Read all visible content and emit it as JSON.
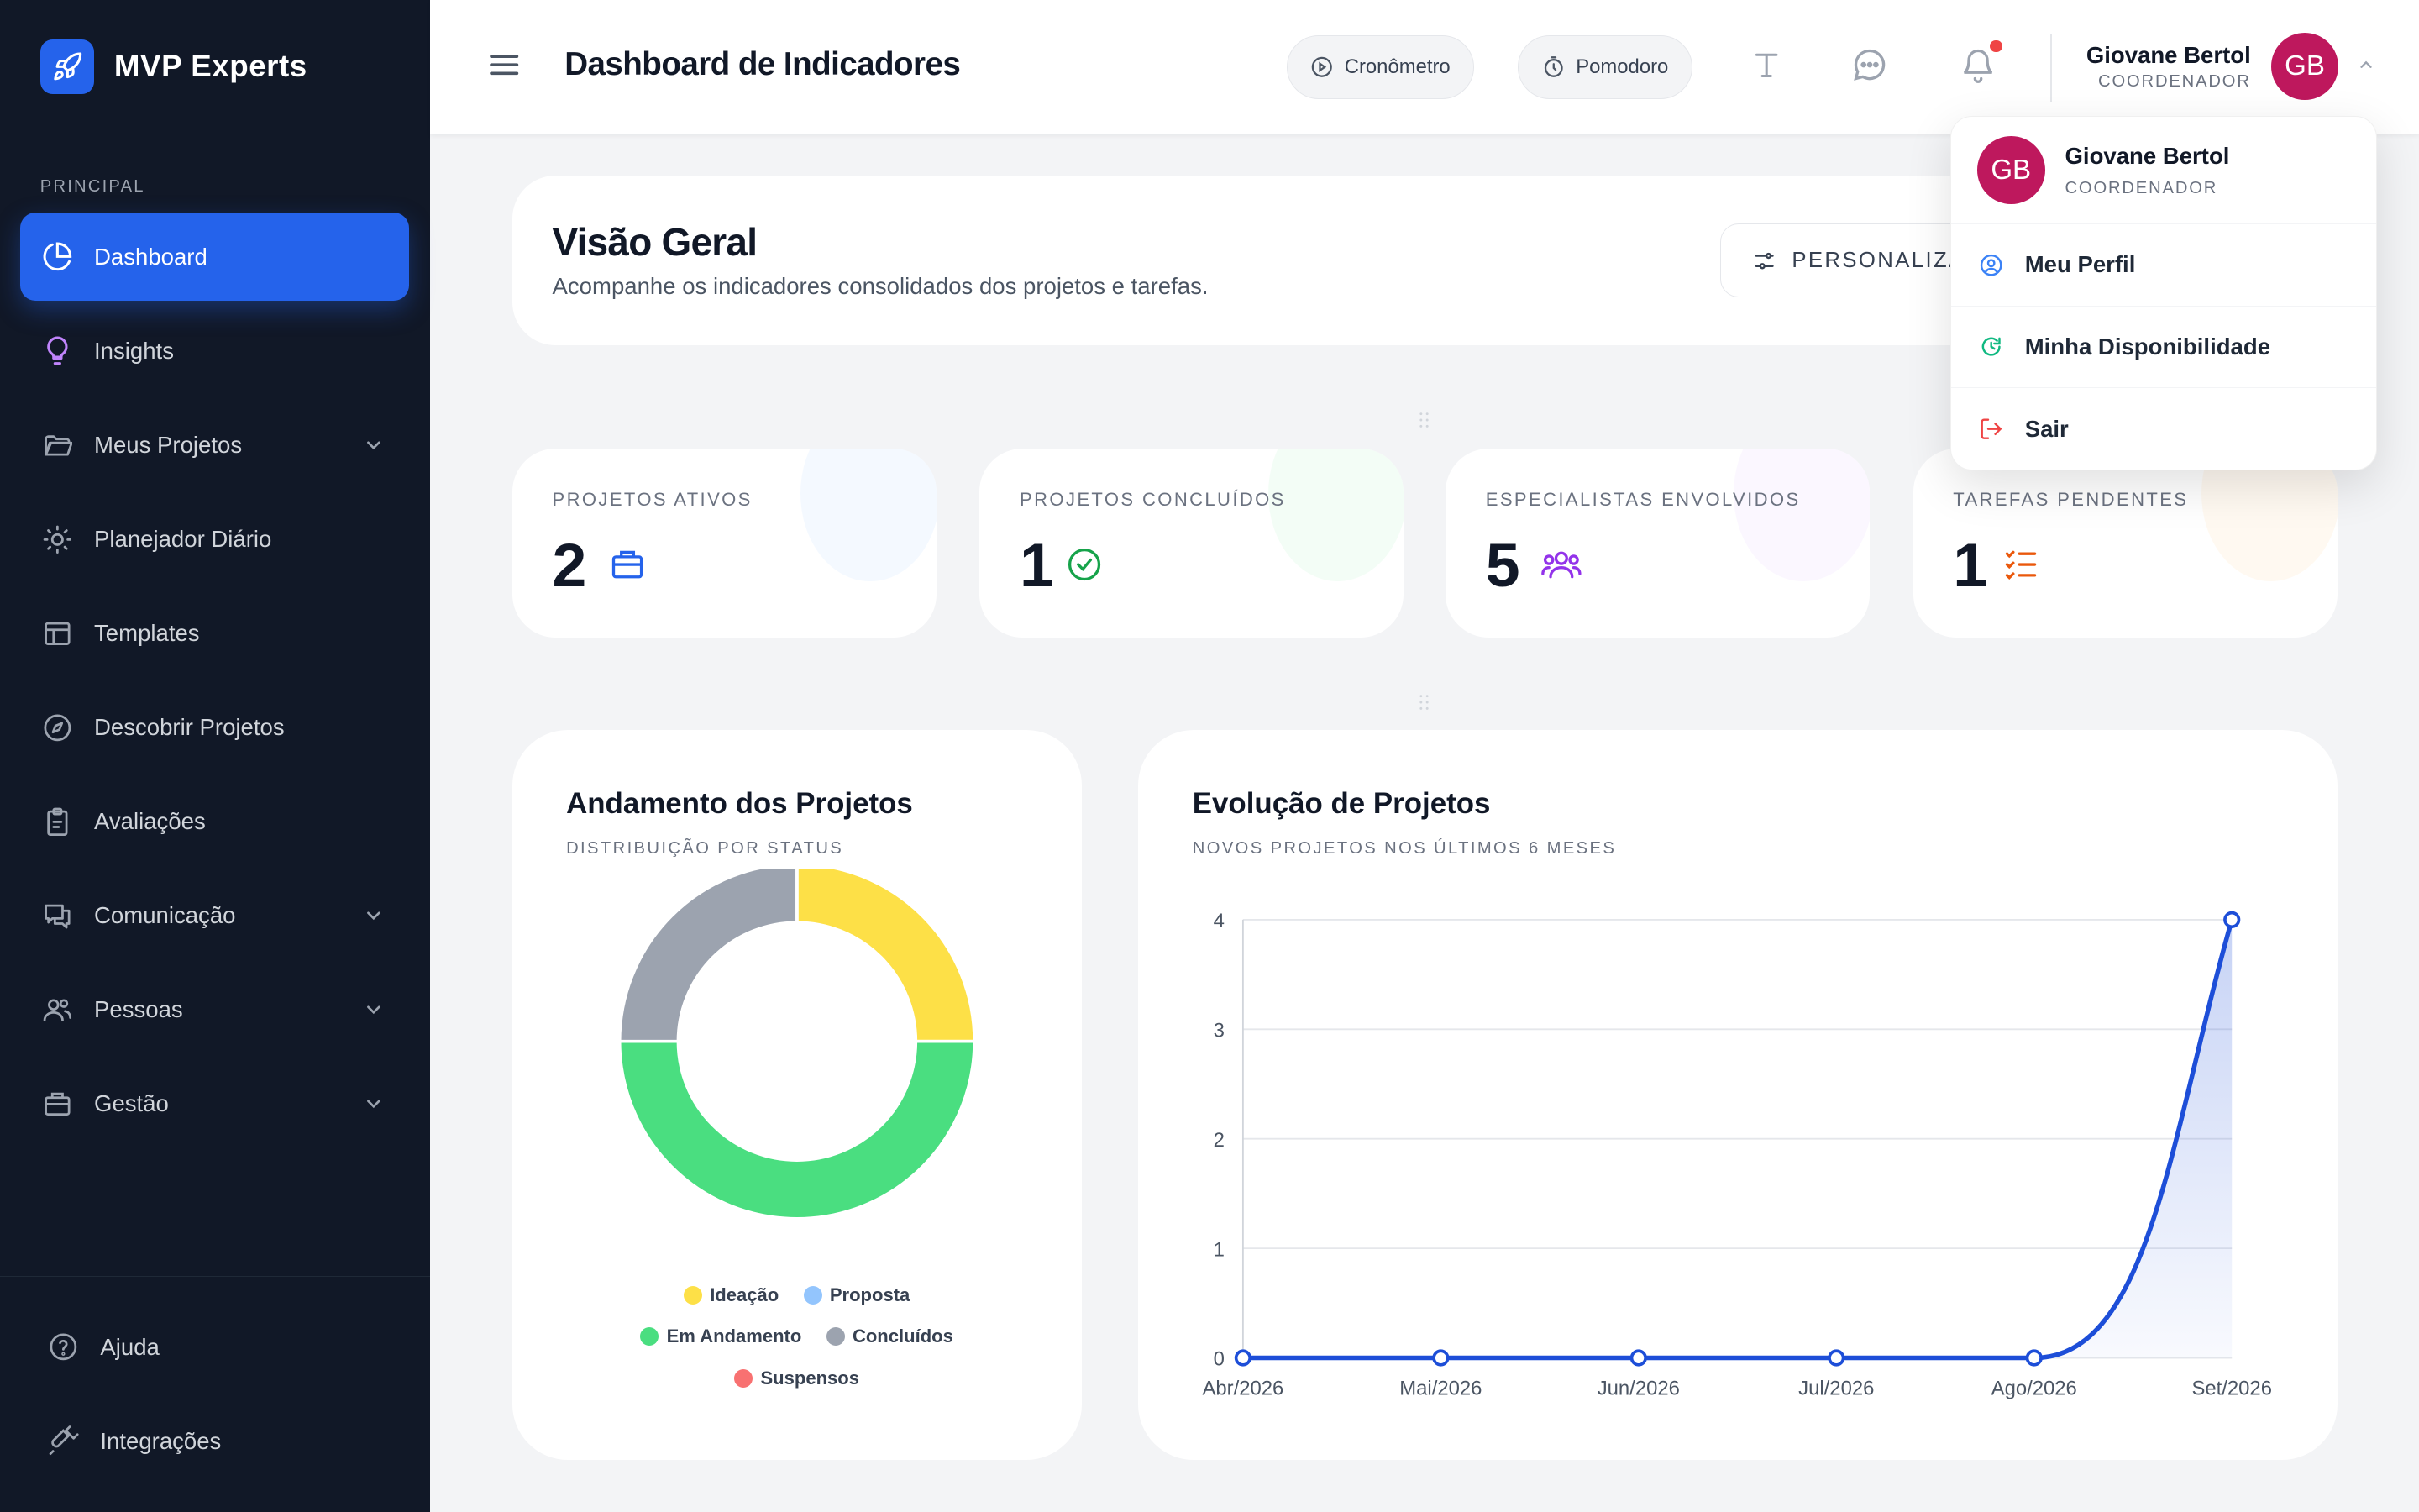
{
  "brand": {
    "name": "MVP Experts"
  },
  "sidebar": {
    "section_label": "PRINCIPAL",
    "items": [
      {
        "label": "Dashboard",
        "icon": "pie-chart-icon",
        "active": true
      },
      {
        "label": "Insights",
        "icon": "lightbulb-icon"
      },
      {
        "label": "Meus Projetos",
        "icon": "folder-icon",
        "expandable": true
      },
      {
        "label": "Planejador Diário",
        "icon": "sun-icon"
      },
      {
        "label": "Templates",
        "icon": "layout-icon"
      },
      {
        "label": "Descobrir Projetos",
        "icon": "compass-icon"
      },
      {
        "label": "Avaliações",
        "icon": "clipboard-icon"
      },
      {
        "label": "Comunicação",
        "icon": "chat-icon",
        "expandable": true
      },
      {
        "label": "Pessoas",
        "icon": "users-icon",
        "expandable": true
      },
      {
        "label": "Gestão",
        "icon": "briefcase-icon",
        "expandable": true
      }
    ],
    "bottom": [
      {
        "label": "Ajuda",
        "icon": "help-icon"
      },
      {
        "label": "Integrações",
        "icon": "plug-icon"
      }
    ]
  },
  "header": {
    "title": "Dashboard de Indicadores",
    "cronometro": "Cronômetro",
    "pomodoro": "Pomodoro",
    "user_name": "Giovane Bertol",
    "user_role": "COORDENADOR",
    "avatar_initials": "GB"
  },
  "overview": {
    "title": "Visão Geral",
    "subtitle": "Acompanhe os indicadores consolidados dos projetos e tarefas.",
    "personalize_label": "PERSONALIZA"
  },
  "stats": [
    {
      "label": "PROJETOS ATIVOS",
      "value": "2",
      "icon": "briefcase-icon",
      "color": "#2563eb"
    },
    {
      "label": "PROJETOS CONCLUÍDOS",
      "value": "1",
      "icon": "check-circle-icon",
      "color": "#16a34a"
    },
    {
      "label": "ESPECIALISTAS ENVOLVIDOS",
      "value": "5",
      "icon": "users-icon",
      "color": "#9333ea"
    },
    {
      "label": "TAREFAS PENDENTES",
      "value": "1",
      "icon": "list-check-icon",
      "color": "#ea580c"
    }
  ],
  "donut": {
    "title": "Andamento dos Projetos",
    "subtitle": "DISTRIBUIÇÃO POR STATUS",
    "legend": [
      {
        "label": "Ideação",
        "color": "#fde047"
      },
      {
        "label": "Proposta",
        "color": "#93c5fd"
      },
      {
        "label": "Em Andamento",
        "color": "#4ade80"
      },
      {
        "label": "Concluídos",
        "color": "#9ca3af"
      },
      {
        "label": "Suspensos",
        "color": "#f87171"
      }
    ]
  },
  "evolution": {
    "title": "Evolução de Projetos",
    "subtitle": "NOVOS PROJETOS NOS ÚLTIMOS 6 MESES"
  },
  "chart_data": [
    {
      "type": "pie",
      "title": "Andamento dos Projetos",
      "subtitle": "DISTRIBUIÇÃO POR STATUS",
      "categories": [
        "Ideação",
        "Proposta",
        "Em Andamento",
        "Concluídos",
        "Suspensos"
      ],
      "values": [
        1,
        0,
        2,
        1,
        0
      ],
      "colors": [
        "#fde047",
        "#93c5fd",
        "#4ade80",
        "#9ca3af",
        "#f87171"
      ],
      "donut": true,
      "legend": "bottom"
    },
    {
      "type": "area",
      "title": "Evolução de Projetos",
      "subtitle": "NOVOS PROJETOS NOS ÚLTIMOS 6 MESES",
      "categories": [
        "Abr/2026",
        "Mai/2026",
        "Jun/2026",
        "Jul/2026",
        "Ago/2026",
        "Set/2026"
      ],
      "values": [
        0,
        0,
        0,
        0,
        0,
        4
      ],
      "y_ticks": [
        0,
        1,
        2,
        3,
        4
      ],
      "ylim": [
        0,
        4
      ],
      "grid": true,
      "color": "#1d4ed8"
    }
  ],
  "dropdown": {
    "name": "Giovane Bertol",
    "role": "COORDENADOR",
    "initials": "GB",
    "items": [
      {
        "label": "Meu Perfil",
        "icon": "user-circle-icon",
        "color": "#3b82f6"
      },
      {
        "label": "Minha Disponibilidade",
        "icon": "refresh-icon",
        "color": "#10b981"
      },
      {
        "label": "Sair",
        "icon": "logout-icon",
        "color": "#ef4444"
      }
    ]
  }
}
